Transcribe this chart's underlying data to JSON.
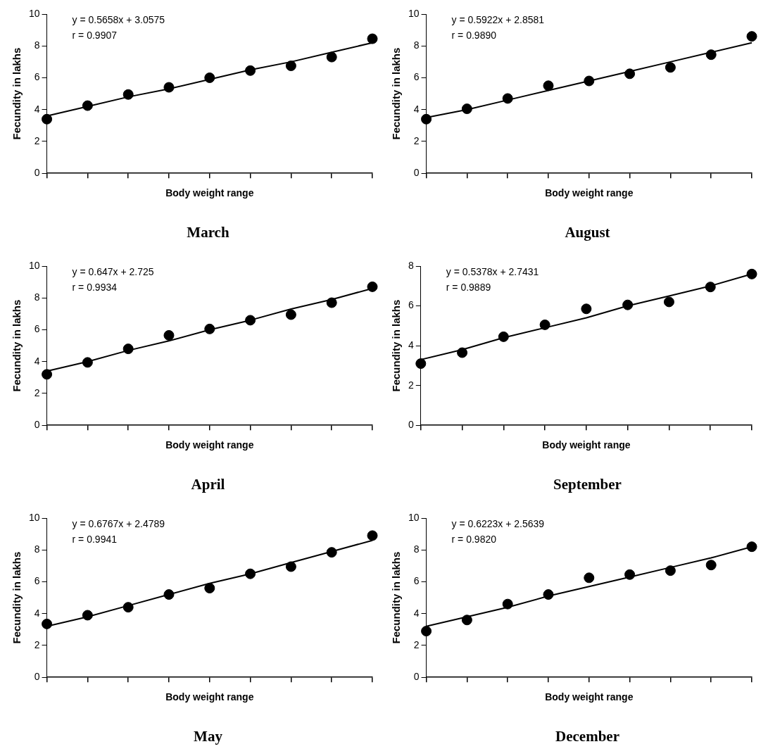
{
  "chart_data": [
    {
      "type": "scatter",
      "title": "March",
      "xlabel": "Body weight range",
      "ylabel": "Fecundity in lakhs",
      "annotations": [
        "y = 0.5658x + 3.0575",
        "r = 0.9907"
      ],
      "categories": [
        null,
        null,
        null,
        null,
        null,
        null,
        null,
        null,
        null
      ],
      "ylim": [
        0,
        10
      ],
      "yticks": [
        0,
        2,
        4,
        6,
        8,
        10
      ],
      "tick_labels": "y",
      "series": [
        {
          "type": "scatter",
          "marker": "circle",
          "color": "#000000",
          "values": [
            3.4,
            4.25,
            4.95,
            5.4,
            6.0,
            6.45,
            6.75,
            7.3,
            8.45
          ]
        },
        {
          "type": "line",
          "marker": "none",
          "color": "#000000",
          "values": [
            3.6,
            4.2,
            4.8,
            5.3,
            5.9,
            6.5,
            7.0,
            7.6,
            8.2
          ]
        }
      ]
    },
    {
      "type": "scatter",
      "title": "August",
      "xlabel": "Body weight range",
      "ylabel": "Fecundity in lakhs",
      "annotations": [
        "y = 0.5922x + 2.8581",
        "r = 0.9890"
      ],
      "categories": [
        null,
        null,
        null,
        null,
        null,
        null,
        null,
        null,
        null
      ],
      "ylim": [
        0,
        10
      ],
      "yticks": [
        0,
        2,
        4,
        6,
        8,
        10
      ],
      "tick_labels": "y",
      "series": [
        {
          "type": "scatter",
          "marker": "circle",
          "color": "#000000",
          "values": [
            3.4,
            4.05,
            4.7,
            5.5,
            5.8,
            6.25,
            6.65,
            7.45,
            8.6
          ]
        },
        {
          "type": "line",
          "marker": "none",
          "color": "#000000",
          "values": [
            3.5,
            4.0,
            4.6,
            5.2,
            5.8,
            6.4,
            7.0,
            7.6,
            8.2
          ]
        }
      ]
    },
    {
      "type": "scatter",
      "title": "April",
      "xlabel": "Body weight range",
      "ylabel": "Fecundity in lakhs",
      "annotations": [
        "y = 0.647x + 2.725",
        "r = 0.9934"
      ],
      "categories": [
        null,
        null,
        null,
        null,
        null,
        null,
        null,
        null,
        null
      ],
      "ylim": [
        0,
        10
      ],
      "yticks": [
        0,
        2,
        4,
        6,
        8,
        10
      ],
      "tick_labels": "y",
      "series": [
        {
          "type": "scatter",
          "marker": "circle",
          "color": "#000000",
          "values": [
            3.2,
            3.95,
            4.8,
            5.65,
            6.05,
            6.6,
            6.95,
            7.7,
            8.7
          ]
        },
        {
          "type": "line",
          "marker": "none",
          "color": "#000000",
          "values": [
            3.4,
            4.0,
            4.7,
            5.3,
            6.0,
            6.6,
            7.3,
            7.9,
            8.6
          ]
        }
      ]
    },
    {
      "type": "scatter",
      "title": "September",
      "xlabel": "Body weight range",
      "ylabel": "Fecundity in lakhs",
      "annotations": [
        "y = 0.5378x + 2.7431",
        "r = 0.9889"
      ],
      "categories": [
        null,
        null,
        null,
        null,
        null,
        null,
        null,
        null,
        null
      ],
      "ylim": [
        0,
        8
      ],
      "yticks": [
        0,
        2,
        4,
        6,
        8
      ],
      "tick_labels": "y",
      "series": [
        {
          "type": "scatter",
          "marker": "circle",
          "color": "#000000",
          "values": [
            3.1,
            3.65,
            4.45,
            5.05,
            5.85,
            6.05,
            6.2,
            6.95,
            7.6
          ]
        },
        {
          "type": "line",
          "marker": "none",
          "color": "#000000",
          "values": [
            3.3,
            3.8,
            4.4,
            4.9,
            5.4,
            6.0,
            6.5,
            7.0,
            7.6
          ]
        }
      ]
    },
    {
      "type": "scatter",
      "title": "May",
      "xlabel": "Body weight range",
      "ylabel": "Fecundity in lakhs",
      "annotations": [
        "y = 0.6767x + 2.4789",
        "r = 0.9941"
      ],
      "categories": [
        null,
        null,
        null,
        null,
        null,
        null,
        null,
        null,
        null
      ],
      "ylim": [
        0,
        10
      ],
      "yticks": [
        0,
        2,
        4,
        6,
        8,
        10
      ],
      "tick_labels": "y",
      "series": [
        {
          "type": "scatter",
          "marker": "circle",
          "color": "#000000",
          "values": [
            3.35,
            3.9,
            4.4,
            5.2,
            5.6,
            6.5,
            6.95,
            7.85,
            8.9
          ]
        },
        {
          "type": "line",
          "marker": "none",
          "color": "#000000",
          "values": [
            3.2,
            3.8,
            4.5,
            5.2,
            5.9,
            6.5,
            7.2,
            7.9,
            8.6
          ]
        }
      ]
    },
    {
      "type": "scatter",
      "title": "December",
      "xlabel": "Body weight range",
      "ylabel": "Fecundity in lakhs",
      "annotations": [
        "y = 0.6223x + 2.5639",
        "r = 0.9820"
      ],
      "categories": [
        null,
        null,
        null,
        null,
        null,
        null,
        null,
        null,
        null
      ],
      "ylim": [
        0,
        10
      ],
      "yticks": [
        0,
        2,
        4,
        6,
        8,
        10
      ],
      "tick_labels": "y",
      "series": [
        {
          "type": "scatter",
          "marker": "circle",
          "color": "#000000",
          "values": [
            2.9,
            3.6,
            4.6,
            5.2,
            6.25,
            6.45,
            6.7,
            7.05,
            8.2
          ]
        },
        {
          "type": "line",
          "marker": "none",
          "color": "#000000",
          "values": [
            3.2,
            3.8,
            4.4,
            5.1,
            5.7,
            6.3,
            6.9,
            7.5,
            8.2
          ]
        }
      ]
    }
  ]
}
